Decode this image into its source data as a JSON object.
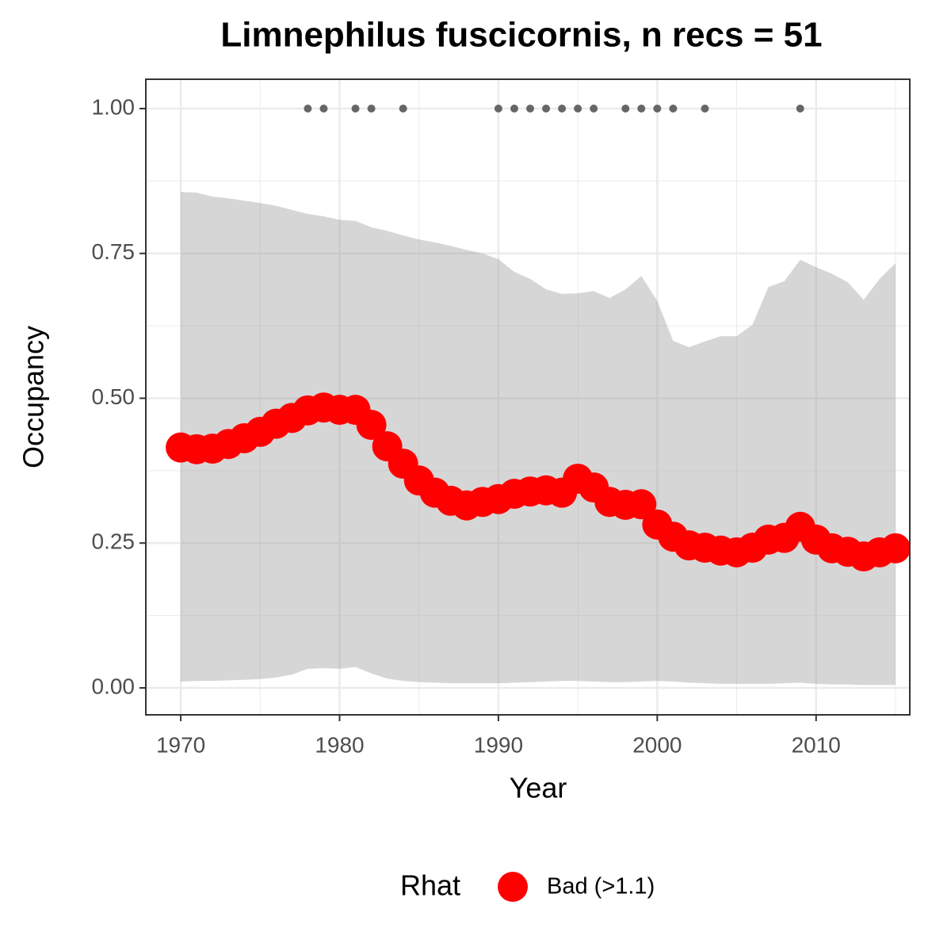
{
  "chart_data": {
    "type": "line",
    "title": "Limnephilus fuscicornis, n recs = 51",
    "x_label": "Year",
    "y_label": "Occupancy",
    "x": [
      1970,
      1971,
      1972,
      1973,
      1974,
      1975,
      1976,
      1977,
      1978,
      1979,
      1980,
      1981,
      1982,
      1983,
      1984,
      1985,
      1986,
      1987,
      1988,
      1989,
      1990,
      1991,
      1992,
      1993,
      1994,
      1995,
      1996,
      1997,
      1998,
      1999,
      2000,
      2001,
      2002,
      2003,
      2004,
      2005,
      2006,
      2007,
      2008,
      2009,
      2010,
      2011,
      2012,
      2013,
      2014,
      2015
    ],
    "series": [
      {
        "name": "Bad (>1.1)",
        "color": "#ff0000",
        "values": [
          0.415,
          0.412,
          0.413,
          0.421,
          0.431,
          0.442,
          0.456,
          0.466,
          0.479,
          0.484,
          0.48,
          0.48,
          0.454,
          0.417,
          0.387,
          0.358,
          0.337,
          0.323,
          0.315,
          0.321,
          0.326,
          0.335,
          0.339,
          0.341,
          0.337,
          0.361,
          0.346,
          0.321,
          0.316,
          0.317,
          0.282,
          0.261,
          0.246,
          0.242,
          0.237,
          0.234,
          0.242,
          0.256,
          0.259,
          0.278,
          0.256,
          0.241,
          0.235,
          0.227,
          0.234,
          0.241
        ]
      }
    ],
    "ribbon": {
      "color": "#999999",
      "opacity": 0.4,
      "upper": [
        0.856,
        0.855,
        0.848,
        0.845,
        0.841,
        0.837,
        0.832,
        0.825,
        0.818,
        0.814,
        0.808,
        0.806,
        0.795,
        0.789,
        0.781,
        0.774,
        0.769,
        0.763,
        0.756,
        0.75,
        0.74,
        0.718,
        0.706,
        0.688,
        0.68,
        0.681,
        0.685,
        0.673,
        0.688,
        0.711,
        0.668,
        0.599,
        0.588,
        0.598,
        0.607,
        0.607,
        0.627,
        0.692,
        0.702,
        0.739,
        0.726,
        0.715,
        0.7,
        0.67,
        0.706,
        0.733
      ],
      "lower": [
        0.011,
        0.012,
        0.012,
        0.013,
        0.014,
        0.015,
        0.018,
        0.023,
        0.033,
        0.034,
        0.033,
        0.036,
        0.025,
        0.016,
        0.012,
        0.01,
        0.009,
        0.008,
        0.008,
        0.008,
        0.008,
        0.009,
        0.01,
        0.011,
        0.012,
        0.012,
        0.011,
        0.01,
        0.01,
        0.011,
        0.012,
        0.011,
        0.009,
        0.008,
        0.007,
        0.007,
        0.007,
        0.007,
        0.008,
        0.009,
        0.007,
        0.006,
        0.006,
        0.005,
        0.005,
        0.005
      ]
    },
    "records": {
      "color": "#666666",
      "x": [
        1978,
        1979,
        1981,
        1982,
        1984,
        1990,
        1991,
        1992,
        1993,
        1994,
        1995,
        1996,
        1998,
        1999,
        2000,
        2001,
        2003,
        2009
      ],
      "values": [
        1,
        1,
        1,
        1,
        1,
        1,
        1,
        1,
        1,
        1,
        1,
        1,
        1,
        1,
        1,
        1,
        1,
        1
      ]
    },
    "legend_title": "Rhat",
    "legend_position": "bottom",
    "xlim": [
      1967.8,
      2015.9
    ],
    "ylim": [
      -0.0465,
      1.0506
    ],
    "xticks": [
      1970,
      1980,
      1990,
      2000,
      2010
    ],
    "yticks": [
      {
        "value": 0,
        "label": "0.00"
      },
      {
        "value": 0.25,
        "label": "0.25"
      },
      {
        "value": 0.5,
        "label": "0.50"
      },
      {
        "value": 0.75,
        "label": "0.75"
      },
      {
        "value": 1,
        "label": "1.00"
      }
    ],
    "grid": true
  }
}
